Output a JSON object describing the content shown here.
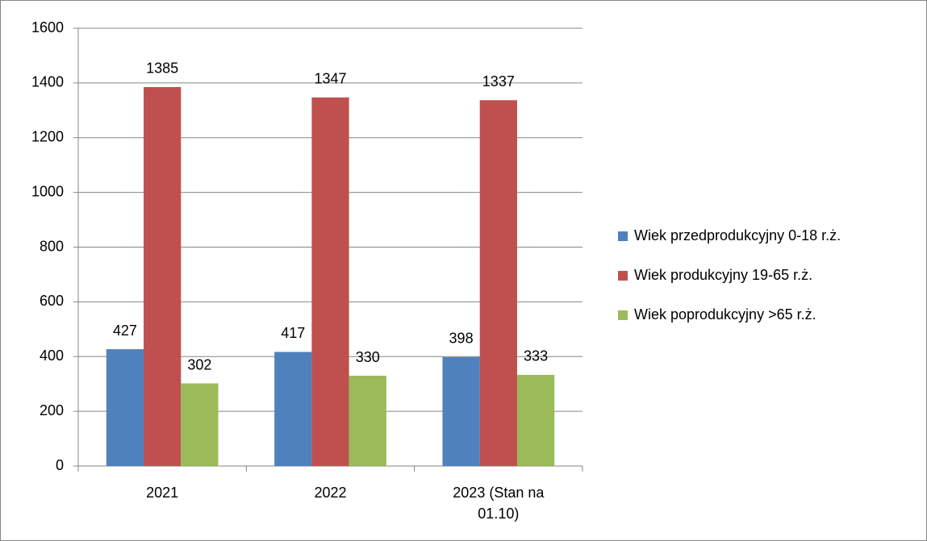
{
  "chart_data": {
    "type": "bar",
    "categories": [
      "2021",
      "2022",
      "2023 (Stan na 01.10)"
    ],
    "series": [
      {
        "name": "Wiek przedprodukcyjny 0-18 r.ż.",
        "color": "#4f81bd",
        "values": [
          427,
          417,
          398
        ]
      },
      {
        "name": "Wiek produkcyjny 19-65 r.ż.",
        "color": "#c0504d",
        "values": [
          1385,
          1347,
          1337
        ]
      },
      {
        "name": "Wiek poprodukcyjny >65 r.ż.",
        "color": "#9bbb59",
        "values": [
          302,
          330,
          333
        ]
      }
    ],
    "ylim": [
      0,
      1600
    ],
    "yticks": [
      0,
      200,
      400,
      600,
      800,
      1000,
      1200,
      1400,
      1600
    ],
    "grid": true,
    "legend": "right"
  }
}
